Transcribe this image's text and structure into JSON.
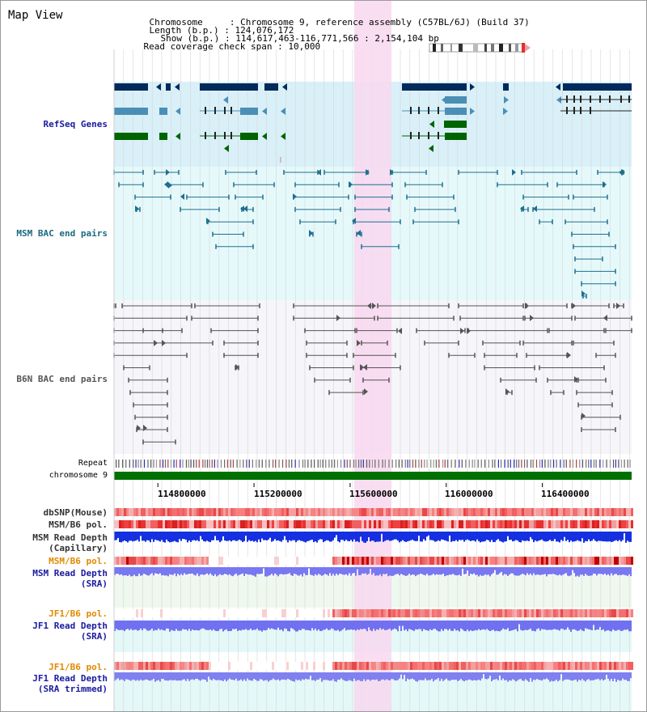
{
  "title": "Map View",
  "info": {
    "chromosome_label": "Chromosome",
    "chromosome_value": "Chromosome 9, reference assembly (C57BL/6J) (Build 37)",
    "length_label": "Length (b.p.)",
    "length_value": "124,076,172",
    "show_label": "Show (b.p.)",
    "show_value": "114,617,463-116,771,566 : 2,154,104 bp",
    "coverage_label": "Read coverage check span",
    "coverage_value": "10,000"
  },
  "tracks": {
    "refseq": "RefSeq Genes",
    "msm_bac": "MSM BAC end pairs",
    "b6n_bac": "B6N BAC end pairs",
    "repeat": "Repeat",
    "chromosome": "chromosome 9",
    "dbsnp": "dbSNP(Mouse)",
    "msm_b6_pol": "MSM/B6 pol.",
    "msm_depth_cap_1": "MSM Read Depth",
    "msm_depth_cap_2": "(Capillary)",
    "msm_b6_pol2": "MSM/B6 pol.",
    "msm_depth_sra_1": "MSM Read Depth",
    "msm_depth_sra_2": "(SRA)",
    "jf1_b6_pol": "JF1/B6 pol.",
    "jf1_depth_sra_1": "JF1 Read Depth",
    "jf1_depth_sra_2": "(SRA)",
    "jf1_b6_pol2": "JF1/B6 pol.",
    "jf1_depth_trim_1": "JF1 Read Depth",
    "jf1_depth_trim_2": "(SRA trimmed)"
  },
  "axis": {
    "ticks": [
      "114800000",
      "115200000",
      "115600000",
      "116000000",
      "116400000"
    ],
    "tick_values": [
      114800000,
      115200000,
      115600000,
      116000000,
      116400000
    ],
    "range": [
      114617463,
      116771566
    ]
  },
  "colors": {
    "refseq_bg": "#d9f0f8",
    "msm_bg": "#e6f9fa",
    "b6n_bg": "#f5f5fa",
    "highlight": "#f8d8f0",
    "gene_dark": "#002a5c",
    "gene_mid": "#4a8fb5",
    "gene_green": "#006400",
    "bac_msm": "#1f6f8f",
    "bac_b6n": "#555555",
    "chromosome_bar": "#007000"
  }
}
